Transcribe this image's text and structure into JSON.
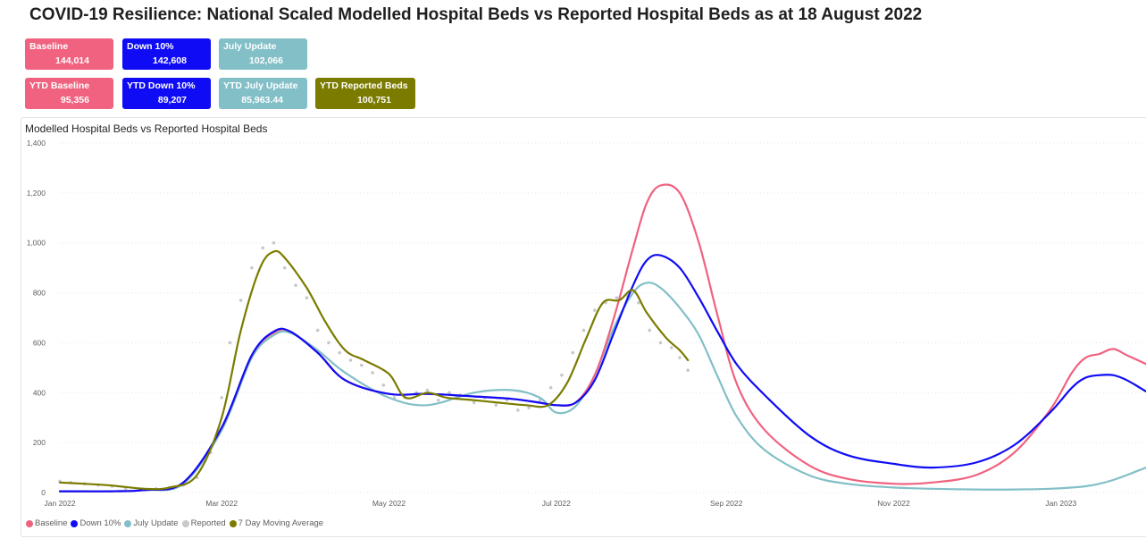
{
  "page": {
    "title": "COVID-19 Resilience: National Scaled Modelled Hospital Beds vs Reported Hospital Beds as at 18 August 2022"
  },
  "cards": {
    "baseline": {
      "label": "Baseline",
      "value": "144,014",
      "color": "#f0627f"
    },
    "down10": {
      "label": "Down 10%",
      "value": "142,608",
      "color": "#0f0cf5"
    },
    "july": {
      "label": "July Update",
      "value": "102,066",
      "color": "#82bfc7"
    },
    "ytd_baseline": {
      "label": "YTD Baseline",
      "value": "95,356",
      "color": "#f0627f"
    },
    "ytd_down10": {
      "label": "YTD Down 10%",
      "value": "89,207",
      "color": "#0f0cf5"
    },
    "ytd_july": {
      "label": "YTD July Update",
      "value": "85,963.44",
      "color": "#82bfc7"
    },
    "ytd_reported": {
      "label": "YTD Reported Beds",
      "value": "100,751",
      "color": "#7b7b00"
    }
  },
  "chart_data": {
    "type": "line",
    "title": "Modelled Hospital Beds vs Reported Hospital Beds",
    "ylim": [
      0,
      1400
    ],
    "y_ticks": [
      0,
      200,
      400,
      600,
      800,
      1000,
      1200,
      1400
    ],
    "y_tick_labels": [
      "0",
      "200",
      "400",
      "600",
      "800",
      "1,000",
      "1,200",
      "1,400"
    ],
    "x_ticks": [
      "2022-01-01",
      "2022-03-01",
      "2022-05-01",
      "2022-07-01",
      "2022-09-01",
      "2022-11-01",
      "2023-01-01"
    ],
    "x_tick_labels": [
      "Jan 2022",
      "Mar 2022",
      "May 2022",
      "Jul 2022",
      "Sep 2022",
      "Nov 2022",
      "Jan 2023"
    ],
    "xlim": [
      "2022-01-01",
      "2023-02-01"
    ],
    "grid": true,
    "legend": "bottom-left",
    "series": [
      {
        "name": "Baseline",
        "color": "#f0627f",
        "style": "line",
        "x": [
          "2022-01-01",
          "2022-01-20",
          "2022-02-01",
          "2022-02-15",
          "2022-03-01",
          "2022-03-12",
          "2022-03-20",
          "2022-03-26",
          "2022-04-05",
          "2022-04-15",
          "2022-05-01",
          "2022-05-15",
          "2022-06-01",
          "2022-06-15",
          "2022-06-25",
          "2022-07-01",
          "2022-07-08",
          "2022-07-15",
          "2022-07-22",
          "2022-07-29",
          "2022-08-03",
          "2022-08-08",
          "2022-08-15",
          "2022-08-22",
          "2022-08-29",
          "2022-09-05",
          "2022-09-15",
          "2022-10-01",
          "2022-10-15",
          "2022-11-01",
          "2022-11-15",
          "2022-12-01",
          "2022-12-15",
          "2022-12-28",
          "2023-01-05",
          "2023-01-10",
          "2023-01-15",
          "2023-01-20",
          "2023-01-25",
          "2023-02-01"
        ],
        "y": [
          5,
          5,
          10,
          40,
          260,
          550,
          640,
          645,
          560,
          450,
          395,
          395,
          385,
          375,
          360,
          350,
          360,
          470,
          700,
          980,
          1160,
          1230,
          1200,
          1000,
          700,
          430,
          250,
          110,
          55,
          35,
          40,
          70,
          160,
          330,
          480,
          540,
          555,
          575,
          550,
          515
        ]
      },
      {
        "name": "Down 10%",
        "color": "#0f0cf5",
        "style": "line",
        "x": [
          "2022-01-01",
          "2022-01-20",
          "2022-02-01",
          "2022-02-15",
          "2022-03-01",
          "2022-03-12",
          "2022-03-20",
          "2022-03-26",
          "2022-04-05",
          "2022-04-15",
          "2022-05-01",
          "2022-05-15",
          "2022-06-01",
          "2022-06-15",
          "2022-06-25",
          "2022-07-01",
          "2022-07-08",
          "2022-07-15",
          "2022-07-22",
          "2022-07-29",
          "2022-08-03",
          "2022-08-08",
          "2022-08-15",
          "2022-08-22",
          "2022-08-29",
          "2022-09-05",
          "2022-09-15",
          "2022-10-01",
          "2022-10-15",
          "2022-11-01",
          "2022-11-15",
          "2022-12-01",
          "2022-12-15",
          "2022-12-28",
          "2023-01-05",
          "2023-01-10",
          "2023-01-15",
          "2023-01-20",
          "2023-01-25",
          "2023-02-01"
        ],
        "y": [
          5,
          5,
          10,
          40,
          260,
          550,
          645,
          645,
          560,
          450,
          395,
          395,
          385,
          375,
          360,
          350,
          360,
          450,
          640,
          830,
          930,
          950,
          900,
          780,
          640,
          510,
          390,
          230,
          150,
          115,
          100,
          120,
          190,
          320,
          420,
          460,
          470,
          470,
          450,
          405
        ]
      },
      {
        "name": "July Update",
        "color": "#82bfc7",
        "style": "line",
        "x": [
          "2022-01-01",
          "2022-01-20",
          "2022-02-01",
          "2022-02-15",
          "2022-03-01",
          "2022-03-12",
          "2022-03-20",
          "2022-03-26",
          "2022-04-05",
          "2022-04-15",
          "2022-05-01",
          "2022-05-15",
          "2022-06-01",
          "2022-06-15",
          "2022-06-25",
          "2022-07-01",
          "2022-07-08",
          "2022-07-15",
          "2022-07-22",
          "2022-07-29",
          "2022-08-03",
          "2022-08-08",
          "2022-08-15",
          "2022-08-22",
          "2022-08-29",
          "2022-09-05",
          "2022-09-15",
          "2022-10-01",
          "2022-10-15",
          "2022-11-01",
          "2022-11-15",
          "2022-12-01",
          "2022-12-15",
          "2022-12-28",
          "2023-01-05",
          "2023-01-10",
          "2023-01-15",
          "2023-01-20",
          "2023-01-25",
          "2023-02-01"
        ],
        "y": [
          5,
          5,
          10,
          35,
          250,
          540,
          630,
          640,
          570,
          480,
          380,
          350,
          400,
          410,
          380,
          320,
          345,
          470,
          660,
          800,
          840,
          820,
          740,
          630,
          460,
          300,
          170,
          70,
          35,
          20,
          15,
          12,
          12,
          15,
          20,
          25,
          35,
          50,
          70,
          100
        ]
      },
      {
        "name": "Reported",
        "color": "#c8c8c8",
        "style": "dots",
        "x": [
          "2022-01-01",
          "2022-01-05",
          "2022-01-10",
          "2022-01-15",
          "2022-01-20",
          "2022-01-25",
          "2022-02-01",
          "2022-02-05",
          "2022-02-10",
          "2022-02-15",
          "2022-02-20",
          "2022-02-25",
          "2022-03-01",
          "2022-03-04",
          "2022-03-08",
          "2022-03-12",
          "2022-03-16",
          "2022-03-20",
          "2022-03-24",
          "2022-03-28",
          "2022-04-01",
          "2022-04-05",
          "2022-04-09",
          "2022-04-13",
          "2022-04-17",
          "2022-04-21",
          "2022-04-25",
          "2022-04-29",
          "2022-05-03",
          "2022-05-07",
          "2022-05-11",
          "2022-05-15",
          "2022-05-19",
          "2022-05-23",
          "2022-05-27",
          "2022-06-01",
          "2022-06-05",
          "2022-06-09",
          "2022-06-13",
          "2022-06-17",
          "2022-06-21",
          "2022-06-25",
          "2022-06-29",
          "2022-07-03",
          "2022-07-07",
          "2022-07-11",
          "2022-07-15",
          "2022-07-19",
          "2022-07-23",
          "2022-07-27",
          "2022-07-31",
          "2022-08-04",
          "2022-08-08",
          "2022-08-12",
          "2022-08-15",
          "2022-08-18"
        ],
        "y": [
          45,
          40,
          35,
          30,
          25,
          15,
          10,
          15,
          20,
          30,
          60,
          160,
          380,
          600,
          770,
          900,
          980,
          1000,
          900,
          830,
          780,
          650,
          600,
          560,
          530,
          510,
          480,
          430,
          380,
          380,
          400,
          410,
          370,
          400,
          390,
          360,
          380,
          350,
          370,
          330,
          340,
          370,
          420,
          470,
          560,
          650,
          730,
          760,
          780,
          790,
          760,
          650,
          600,
          580,
          540,
          490
        ]
      },
      {
        "name": "7 Day Moving Average",
        "color": "#7b7b00",
        "style": "line",
        "x": [
          "2022-01-01",
          "2022-01-10",
          "2022-01-20",
          "2022-02-01",
          "2022-02-10",
          "2022-02-20",
          "2022-03-01",
          "2022-03-08",
          "2022-03-15",
          "2022-03-20",
          "2022-03-24",
          "2022-04-01",
          "2022-04-08",
          "2022-04-15",
          "2022-04-22",
          "2022-05-01",
          "2022-05-07",
          "2022-05-15",
          "2022-05-22",
          "2022-06-01",
          "2022-06-10",
          "2022-06-20",
          "2022-06-28",
          "2022-07-05",
          "2022-07-12",
          "2022-07-18",
          "2022-07-24",
          "2022-07-29",
          "2022-08-03",
          "2022-08-10",
          "2022-08-15",
          "2022-08-18"
        ],
        "y": [
          40,
          35,
          28,
          15,
          20,
          70,
          300,
          650,
          900,
          965,
          940,
          820,
          680,
          570,
          530,
          475,
          380,
          400,
          380,
          370,
          360,
          350,
          350,
          440,
          620,
          760,
          770,
          810,
          720,
          620,
          570,
          530
        ]
      }
    ]
  }
}
